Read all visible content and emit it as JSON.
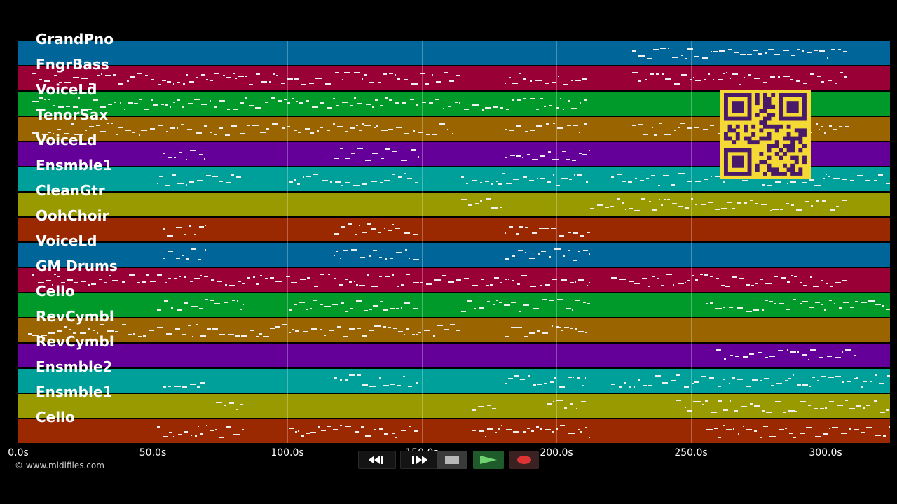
{
  "tracks": [
    {
      "name": "GrandPno",
      "color": "#006599"
    },
    {
      "name": "FngrBass",
      "color": "#990036"
    },
    {
      "name": "VoiceLd",
      "color": "#009a2b"
    },
    {
      "name": "TenorSax",
      "color": "#9a6500"
    },
    {
      "name": "VoiceLd",
      "color": "#640099"
    },
    {
      "name": "Ensmble1",
      "color": "#00a09a"
    },
    {
      "name": "CleanGtr",
      "color": "#999900"
    },
    {
      "name": "OohChoir",
      "color": "#9a2800"
    },
    {
      "name": "VoiceLd",
      "color": "#006599"
    },
    {
      "name": "GM Drums",
      "color": "#990036"
    },
    {
      "name": "Cello",
      "color": "#009a2b"
    },
    {
      "name": "RevCymbl",
      "color": "#9a6500"
    },
    {
      "name": "RevCymbl",
      "color": "#640099"
    },
    {
      "name": "Ensmble2",
      "color": "#00a09a"
    },
    {
      "name": "Ensmble1",
      "color": "#999900"
    },
    {
      "name": "Cello",
      "color": "#9a2800"
    }
  ],
  "timeline": {
    "ticks": [
      "0.0s",
      "50.0s",
      "100.0s",
      "150.0s",
      "200.0s",
      "250.0s",
      "300.0s"
    ]
  },
  "copyright": "© www.midifiles.com",
  "qr": {
    "color": "#f5d935",
    "module_color": "#4a1a6a"
  },
  "transport": {
    "rewind_icon": "rewind-icon",
    "forward_icon": "fast-forward-icon",
    "stop_icon": "stop-icon",
    "play_icon": "play-icon",
    "record_icon": "record-icon"
  }
}
